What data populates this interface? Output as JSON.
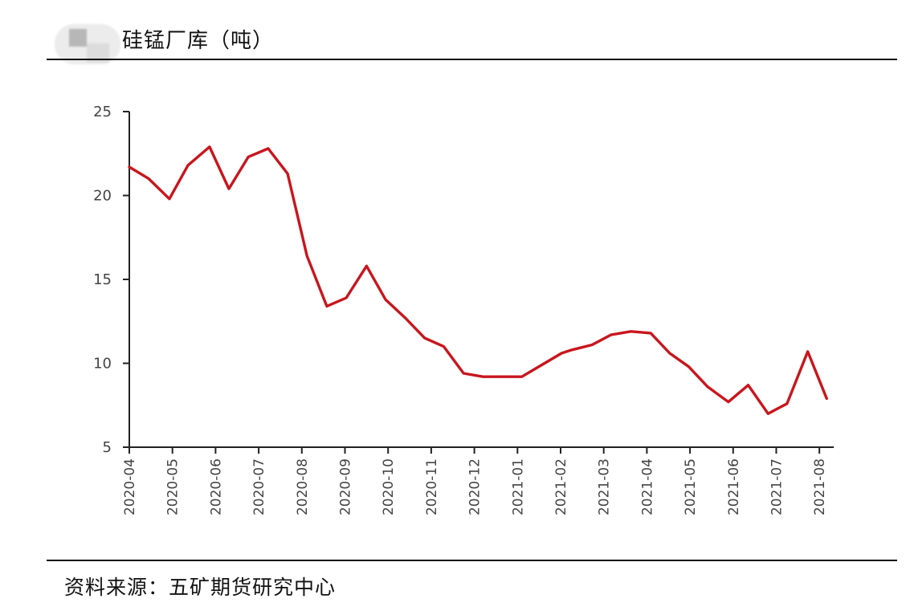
{
  "header": {
    "title": "硅锰厂库（吨）",
    "logo": "blurred-logo"
  },
  "footer": {
    "source": "资料来源：五矿期货研究中心"
  },
  "colors": {
    "line": "#c8161d",
    "axis": "#222222",
    "text": "#444444"
  },
  "chart_data": {
    "type": "line",
    "title": "硅锰厂库（吨）",
    "xlabel": "",
    "ylabel": "",
    "ylim": [
      5,
      25
    ],
    "yticks": [
      5,
      10,
      15,
      20,
      25
    ],
    "xtick_labels": [
      "2020-04",
      "2020-05",
      "2020-06",
      "2020-07",
      "2020-08",
      "2020-09",
      "2020-10",
      "2020-11",
      "2020-12",
      "2021-01",
      "2021-02",
      "2021-03",
      "2021-04",
      "2021-05",
      "2021-06",
      "2021-07",
      "2021-08"
    ],
    "grid": false,
    "legend": null,
    "series": [
      {
        "name": "硅锰厂库",
        "color": "#c8161d",
        "points": [
          {
            "x": 0.0,
            "y": 21.7
          },
          {
            "x": 0.45,
            "y": 21.0
          },
          {
            "x": 0.93,
            "y": 19.8
          },
          {
            "x": 1.36,
            "y": 21.8
          },
          {
            "x": 1.86,
            "y": 22.9
          },
          {
            "x": 2.31,
            "y": 20.4
          },
          {
            "x": 2.76,
            "y": 22.3
          },
          {
            "x": 3.22,
            "y": 22.8
          },
          {
            "x": 3.67,
            "y": 21.3
          },
          {
            "x": 4.12,
            "y": 16.4
          },
          {
            "x": 4.58,
            "y": 13.4
          },
          {
            "x": 5.03,
            "y": 13.9
          },
          {
            "x": 5.5,
            "y": 15.8
          },
          {
            "x": 5.94,
            "y": 13.8
          },
          {
            "x": 6.4,
            "y": 12.7
          },
          {
            "x": 6.85,
            "y": 11.5
          },
          {
            "x": 7.29,
            "y": 11.0
          },
          {
            "x": 7.75,
            "y": 9.4
          },
          {
            "x": 8.2,
            "y": 9.2
          },
          {
            "x": 8.66,
            "y": 9.2
          },
          {
            "x": 9.1,
            "y": 9.2
          },
          {
            "x": 9.56,
            "y": 9.9
          },
          {
            "x": 10.02,
            "y": 10.6
          },
          {
            "x": 10.26,
            "y": 10.8
          },
          {
            "x": 10.73,
            "y": 11.1
          },
          {
            "x": 11.17,
            "y": 11.7
          },
          {
            "x": 11.63,
            "y": 11.9
          },
          {
            "x": 12.09,
            "y": 11.8
          },
          {
            "x": 12.53,
            "y": 10.6
          },
          {
            "x": 12.97,
            "y": 9.8
          },
          {
            "x": 13.41,
            "y": 8.6
          },
          {
            "x": 13.89,
            "y": 7.7
          },
          {
            "x": 14.35,
            "y": 8.7
          },
          {
            "x": 14.81,
            "y": 7.0
          },
          {
            "x": 15.25,
            "y": 7.6
          },
          {
            "x": 15.73,
            "y": 10.7
          },
          {
            "x": 16.17,
            "y": 7.9
          }
        ]
      }
    ]
  }
}
